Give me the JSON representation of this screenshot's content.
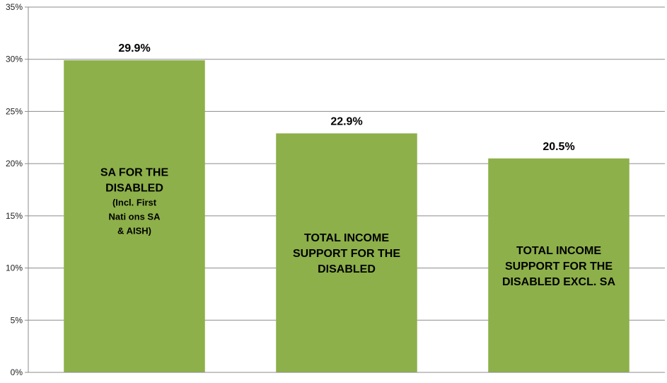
{
  "chart_data": {
    "type": "bar",
    "title": "",
    "xlabel": "",
    "ylabel": "",
    "ylim": [
      0,
      35
    ],
    "yticks": [
      0,
      5,
      10,
      15,
      20,
      25,
      30,
      35
    ],
    "ytick_labels": [
      "0%",
      "5%",
      "10%",
      "15%",
      "20%",
      "25%",
      "30%",
      "35%"
    ],
    "grid": true,
    "bar_color": "#8db04a",
    "categories": [
      "SA FOR THE DISABLED (Incl. First Nati ons SA & AISH)",
      "TOTAL INCOME SUPPORT FOR THE DISABLED",
      "TOTAL INCOME SUPPORT FOR THE DISABLED EXCL. SA"
    ],
    "values": [
      29.9,
      22.9,
      20.5
    ],
    "data_labels": [
      "29.9%",
      "22.9%",
      "20.5%"
    ],
    "bar_text": [
      [
        {
          "text": "SA FOR THE",
          "size": "large"
        },
        {
          "text": "DISABLED",
          "size": "large"
        },
        {
          "text": "(Incl. First",
          "size": "small"
        },
        {
          "text": "Nati  ons SA",
          "size": "small"
        },
        {
          "text": "& AISH)",
          "size": "small"
        }
      ],
      [
        {
          "text": "TOTAL INCOME",
          "size": "large"
        },
        {
          "text": "SUPPORT FOR THE",
          "size": "large"
        },
        {
          "text": "DISABLED",
          "size": "large"
        }
      ],
      [
        {
          "text": "TOTAL INCOME",
          "size": "large"
        },
        {
          "text": "SUPPORT FOR THE",
          "size": "large"
        },
        {
          "text": "DISABLED EXCL. SA",
          "size": "large"
        }
      ]
    ]
  }
}
